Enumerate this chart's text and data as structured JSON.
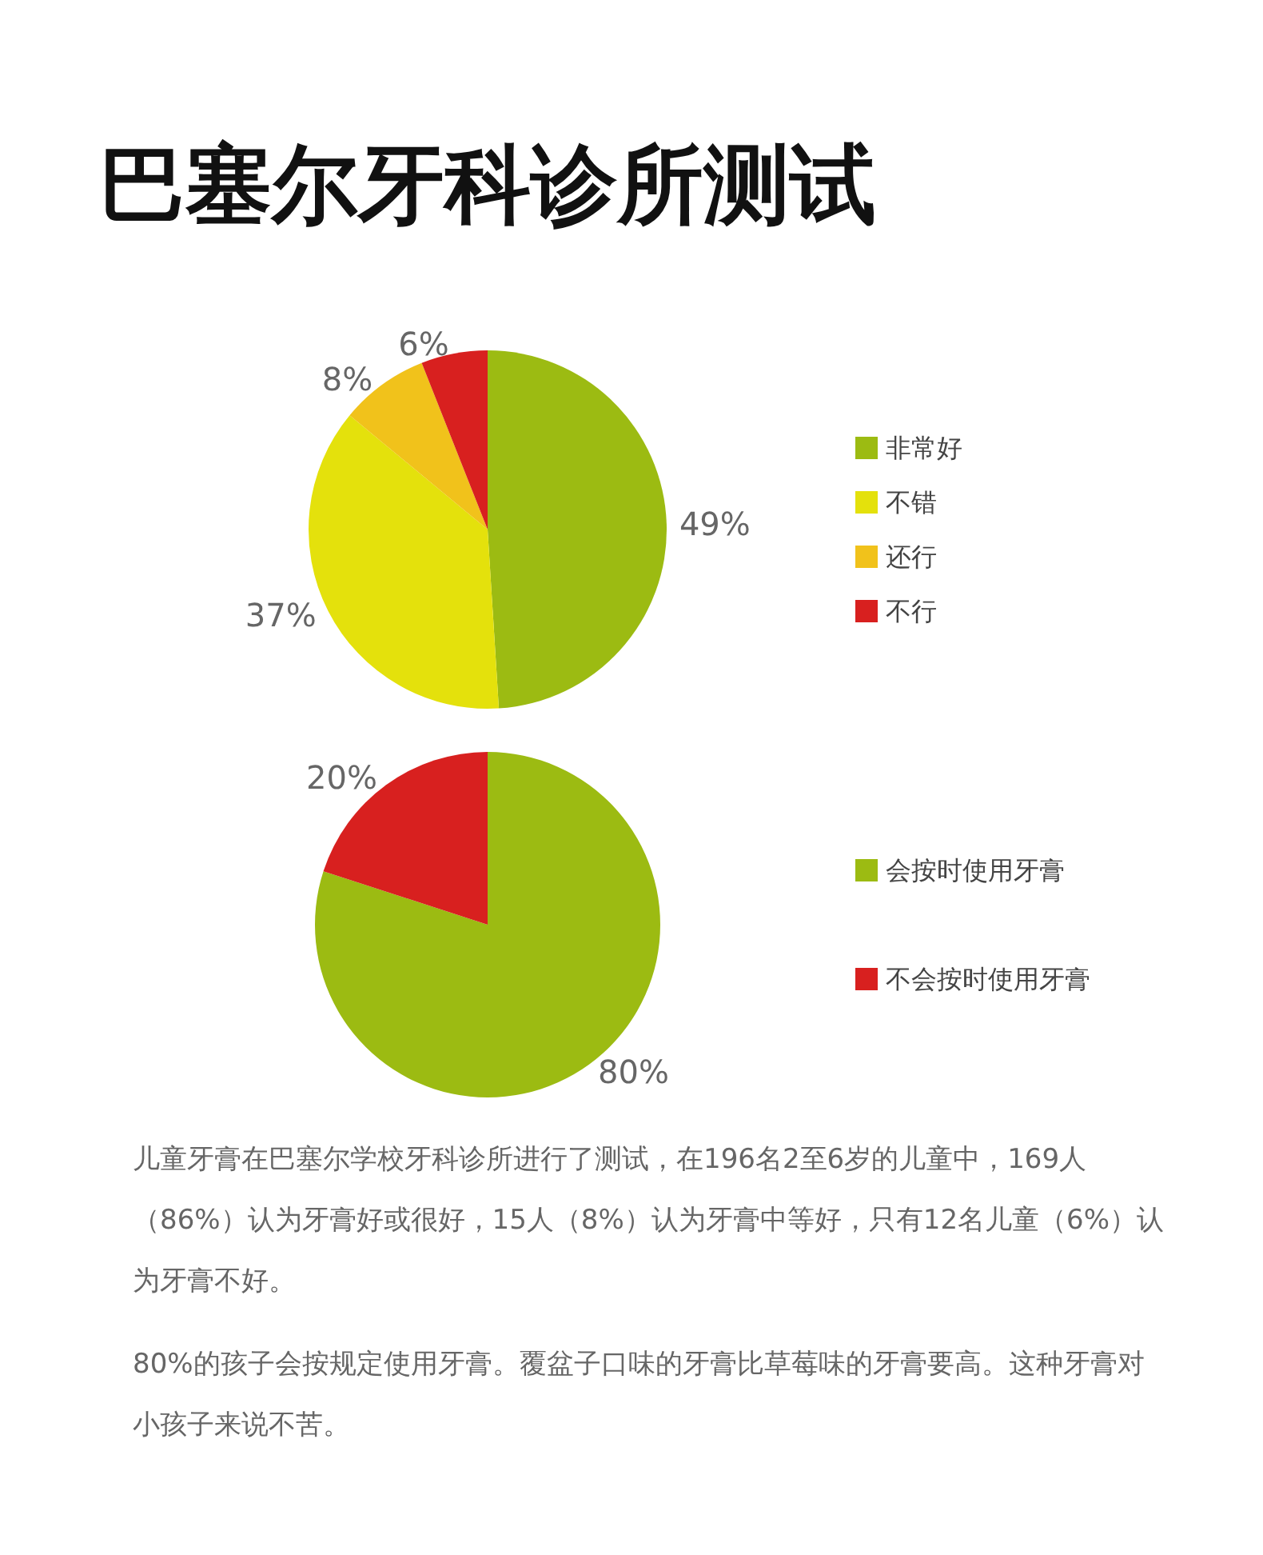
{
  "chart_data": [
    {
      "type": "pie",
      "title": "巴塞尔牙科诊所测试",
      "categories": [
        "非常好",
        "不错",
        "还行",
        "不行"
      ],
      "values": [
        49,
        37,
        8,
        6
      ],
      "colors": [
        "#9cbb12",
        "#e4e10c",
        "#f1c21b",
        "#d8201f"
      ],
      "value_labels": [
        "49%",
        "37%",
        "8%",
        "6%"
      ],
      "legend": "right"
    },
    {
      "type": "pie",
      "categories": [
        "会按时使用牙膏",
        "不会按时使用牙膏"
      ],
      "values": [
        80,
        20
      ],
      "colors": [
        "#9cbb12",
        "#d8201f"
      ],
      "value_labels": [
        "80%",
        "20%"
      ],
      "legend": "right",
      "annotations": [
        "儿童牙膏在巴塞尔学校牙科诊所进行了测试，在196名2至6岁的儿童中，169人（86%）认为牙膏好或很好，15人（8%）认为牙膏中等好，只有12名儿童（6%）认为牙膏不好。",
        "80%的孩子会按规定使用牙膏。覆盆子口味的牙膏比草莓味的牙膏要高。这种牙膏对小孩子来说不苦。"
      ]
    }
  ]
}
